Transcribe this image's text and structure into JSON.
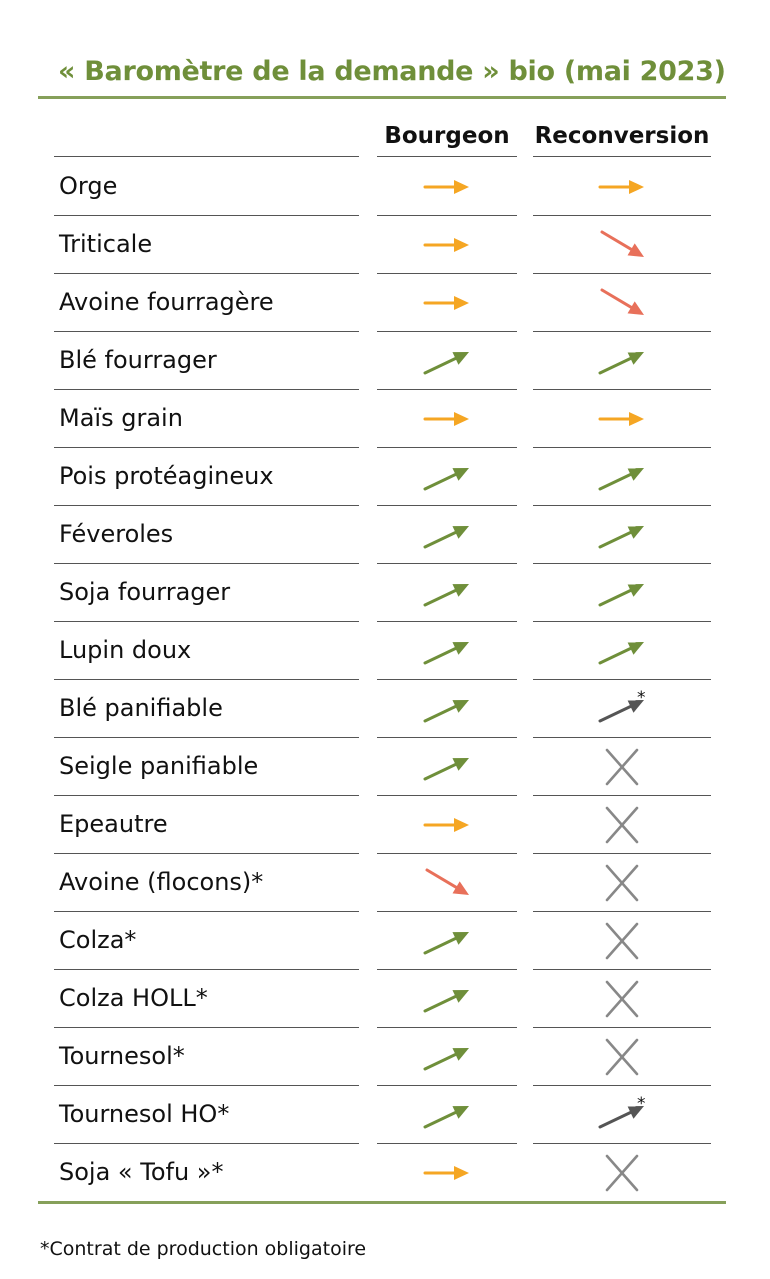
{
  "title": "« Baromètre de la demande » bio (mai 2023)",
  "columns": [
    "Bourgeon",
    "Reconversion"
  ],
  "footnote": "*Contrat de production obligatoire",
  "colors": {
    "title": "#6f8f3a",
    "rule": "#86a05a",
    "stable": "#f5a623",
    "up": "#6f8f3a",
    "down": "#e8705a",
    "neutral": "#555555",
    "unavailable": "#888888"
  },
  "rows": [
    {
      "label": "Orge",
      "bourgeon": "stable-arrow",
      "reconversion": "stable-arrow"
    },
    {
      "label": "Triticale",
      "bourgeon": "stable-arrow",
      "reconversion": "down-arrow"
    },
    {
      "label": "Avoine fourragère",
      "bourgeon": "stable-arrow",
      "reconversion": "down-arrow"
    },
    {
      "label": "Blé fourrager",
      "bourgeon": "up-arrow",
      "reconversion": "up-arrow"
    },
    {
      "label": "Maïs grain",
      "bourgeon": "stable-arrow",
      "reconversion": "stable-arrow"
    },
    {
      "label": "Pois protéagineux",
      "bourgeon": "up-arrow",
      "reconversion": "up-arrow"
    },
    {
      "label": "Féveroles",
      "bourgeon": "up-arrow",
      "reconversion": "up-arrow"
    },
    {
      "label": "Soja fourrager",
      "bourgeon": "up-arrow",
      "reconversion": "up-arrow"
    },
    {
      "label": "Lupin doux",
      "bourgeon": "up-arrow",
      "reconversion": "up-arrow"
    },
    {
      "label": "Blé panifiable",
      "bourgeon": "up-arrow",
      "reconversion": "contract-up-arrow"
    },
    {
      "label": "Seigle panifiable",
      "bourgeon": "up-arrow",
      "reconversion": "cross-icon"
    },
    {
      "label": "Epeautre",
      "bourgeon": "stable-arrow",
      "reconversion": "cross-icon"
    },
    {
      "label": "Avoine (flocons)*",
      "bourgeon": "down-arrow",
      "reconversion": "cross-icon"
    },
    {
      "label": "Colza*",
      "bourgeon": "up-arrow",
      "reconversion": "cross-icon"
    },
    {
      "label": "Colza HOLL*",
      "bourgeon": "up-arrow",
      "reconversion": "cross-icon"
    },
    {
      "label": "Tournesol*",
      "bourgeon": "up-arrow",
      "reconversion": "cross-icon"
    },
    {
      "label": "Tournesol HO*",
      "bourgeon": "up-arrow",
      "reconversion": "contract-up-arrow"
    },
    {
      "label": "Soja « Tofu »*",
      "bourgeon": "stable-arrow",
      "reconversion": "cross-icon"
    }
  ],
  "contract_mark": "*"
}
